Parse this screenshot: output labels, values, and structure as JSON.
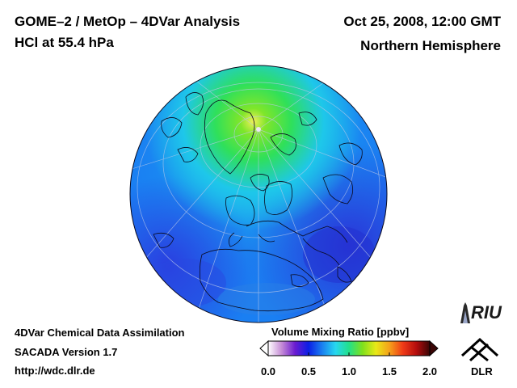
{
  "header": {
    "title": "GOME–2 / MetOp – 4DVar Analysis",
    "species": "HCl at 55.4 hPa",
    "datetime": "Oct 25, 2008, 12:00 GMT",
    "region": "Northern Hemisphere"
  },
  "footer": {
    "line1": "4DVar Chemical Data Assimilation",
    "line2": "SACADA Version 1.7",
    "line3": "http://wdc.dlr.de"
  },
  "colorbar": {
    "title": "Volume Mixing Ratio [ppbv]",
    "ticks": [
      "0.0",
      "0.5",
      "1.0",
      "1.5",
      "2.0"
    ],
    "range": [
      0.0,
      2.0
    ],
    "colors": [
      "#ffffff",
      "#c58bd6",
      "#6a1bd0",
      "#0b1fe6",
      "#1a7ff0",
      "#27d7f0",
      "#22e08a",
      "#7fe01c",
      "#e8e817",
      "#f5a11a",
      "#ef3b17",
      "#b50d0d",
      "#3a0505"
    ]
  },
  "map": {
    "projection": "orthographic, north pole view",
    "field_colors": {
      "background": "#1a7ff2",
      "high": "#2fe05a",
      "mid": "#1ec7ea",
      "low": "#2744e6"
    }
  },
  "logos": {
    "riu": "RIU",
    "dlr": "DLR"
  }
}
